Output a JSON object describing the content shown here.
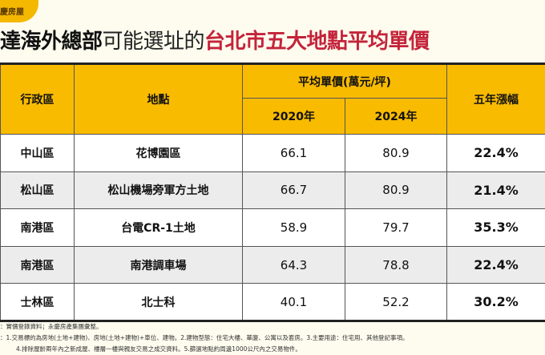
{
  "brand": "慶房屋",
  "title": {
    "part1": "達海外總部",
    "part2": "可能選址的",
    "part3": "台北市五大地點平均單價"
  },
  "table": {
    "headers": {
      "district": "行政區",
      "location": "地點",
      "avg_price": "平均單價(萬元/坪)",
      "y2020": "2020年",
      "y2024": "2024年",
      "growth": "五年漲幅"
    },
    "rows": [
      {
        "district": "中山區",
        "location": "花博園區",
        "y2020": "66.1",
        "y2024": "80.9",
        "growth": "22.4%"
      },
      {
        "district": "松山區",
        "location": "松山機場旁軍方土地",
        "y2020": "66.7",
        "y2024": "80.9",
        "growth": "21.4%"
      },
      {
        "district": "南港區",
        "location": "台電CR-1土地",
        "y2020": "58.9",
        "y2024": "79.7",
        "growth": "35.3%"
      },
      {
        "district": "南港區",
        "location": "南港調車場",
        "y2020": "64.3",
        "y2024": "78.8",
        "growth": "22.4%"
      },
      {
        "district": "士林區",
        "location": "北士科",
        "y2020": "40.1",
        "y2024": "52.2",
        "growth": "30.2%"
      }
    ]
  },
  "notes": [
    "：實價登錄資料；永慶房產集團彙整。",
    "：1.交易標的為房地(土地+建物)、房地(土地+建物)+車位、建物。2.建物型態：住宅大樓、華廈、公寓以及套房。3.主要用途：住宅用、其他登記事項。",
    "4.排除屋齡兩年內之新成屋、樓層一樓與親友交易之成交資料。5.篩選地點約周邊1000公尺內之交易物件。"
  ]
}
